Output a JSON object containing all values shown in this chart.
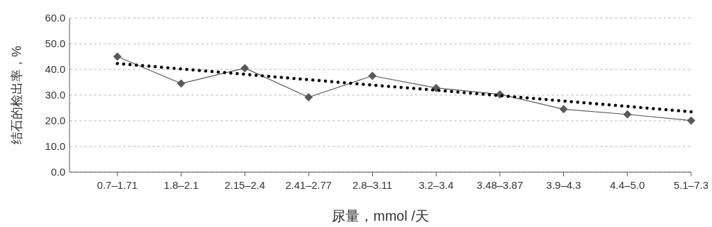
{
  "chart_data": {
    "type": "line",
    "xlabel": "尿量，mmol /天",
    "ylabel": "结石的检出率，%",
    "categories": [
      "0.7–1.71",
      "1.8–2.1",
      "2.15–2.4",
      "2.41–2.77",
      "2.8–3.11",
      "3.2–3.4",
      "3.48–3.87",
      "3.9–4.3",
      "4.4–5.0",
      "5.1–7.3"
    ],
    "series": [
      {
        "color": "#595959",
        "marker": "diamond",
        "line_style": "solid",
        "values": [
          45.0,
          34.5,
          40.5,
          29.2,
          37.5,
          32.8,
          30.3,
          24.5,
          22.5,
          20.1
        ]
      },
      {
        "color": "#000000",
        "marker": "none",
        "line_style": "dotted",
        "values": [
          42.3,
          40.2,
          38.1,
          36.0,
          33.9,
          31.9,
          29.8,
          27.7,
          25.6,
          23.5
        ]
      }
    ],
    "ylim": [
      0,
      60
    ],
    "yticks": [
      {
        "value": 0,
        "label": "0.0"
      },
      {
        "value": 10,
        "label": "10.0"
      },
      {
        "value": 20,
        "label": "20.0"
      },
      {
        "value": 30,
        "label": "30.0"
      },
      {
        "value": 40,
        "label": "40.0"
      },
      {
        "value": 50,
        "label": "50.0"
      },
      {
        "value": 60,
        "label": "60.0"
      }
    ],
    "grid": "y"
  }
}
